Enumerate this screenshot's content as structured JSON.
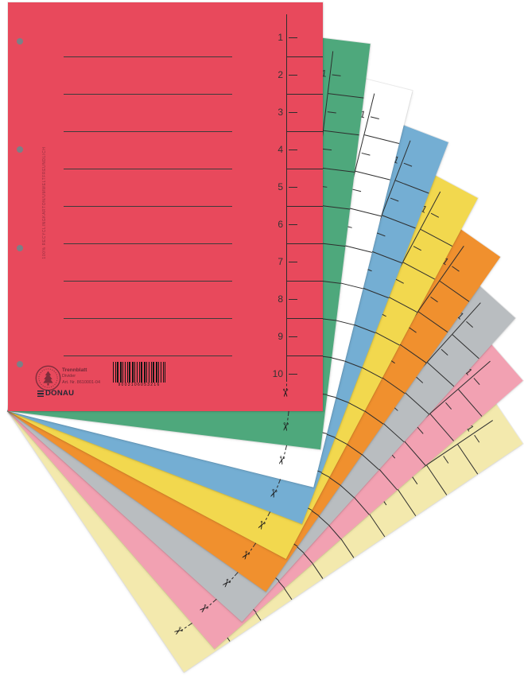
{
  "image_type": "product-photo-of-fanned-divider-sheets",
  "background_color": "#ffffff",
  "sheets": [
    {
      "name": "red",
      "color": "#e8495c",
      "rotation_deg": 0
    },
    {
      "name": "green",
      "color": "#4ea87c",
      "rotation_deg": 7
    },
    {
      "name": "white",
      "color": "#ffffff",
      "rotation_deg": 14
    },
    {
      "name": "blue",
      "color": "#74aed3",
      "rotation_deg": 21
    },
    {
      "name": "yellow",
      "color": "#f2d84e",
      "rotation_deg": 28
    },
    {
      "name": "orange",
      "color": "#f0902e",
      "rotation_deg": 35
    },
    {
      "name": "grey",
      "color": "#b9bdc0",
      "rotation_deg": 42
    },
    {
      "name": "pink",
      "color": "#f2a1b2",
      "rotation_deg": 49
    },
    {
      "name": "cream",
      "color": "#f3e9ad",
      "rotation_deg": 56
    }
  ],
  "scale": {
    "numbers": [
      "1",
      "2",
      "3",
      "4",
      "5",
      "6",
      "7",
      "8",
      "9",
      "10"
    ],
    "scissors_icon": "✂"
  },
  "print": {
    "side_text": "100% RECYCLINGKARTON/UMWELTFREUNDLICH",
    "product_name": "Trennblatt",
    "product_name_en": "Divider",
    "article_no": "Art. Nr. 8610001-04",
    "barcode_digits": "9003106053216",
    "brand": "DONAU",
    "emblem_icon": "eco-tree-emblem"
  },
  "colors": {
    "scale_line": "#2e2e2e",
    "writing_line": "#3c3c3c",
    "hole_punch": "#7c8086",
    "print_dark_red": "#702836",
    "brand_dark": "#242936"
  }
}
